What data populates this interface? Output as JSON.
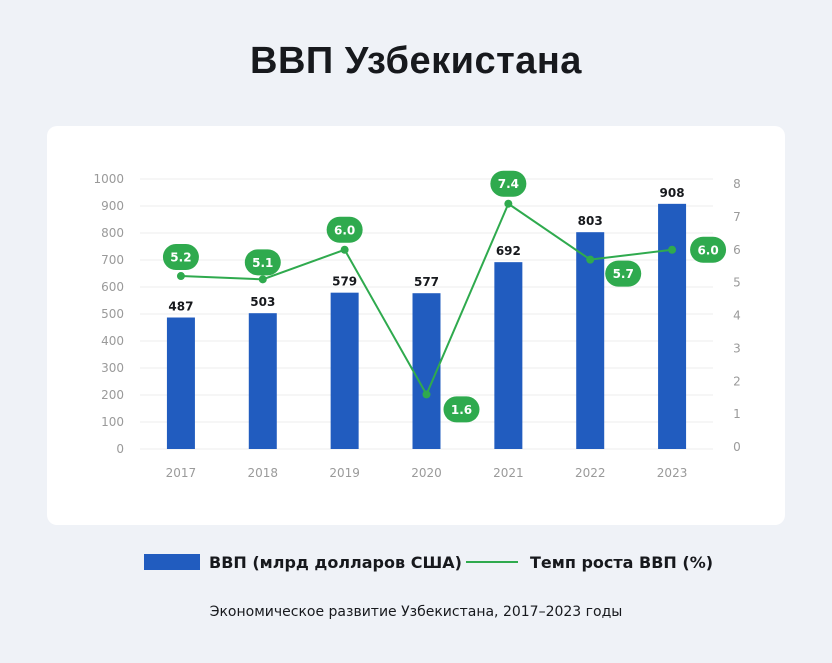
{
  "title": "ВВП Узбекистана",
  "caption": "Экономическое развитие Узбекистана, 2017–2023 годы",
  "legend": {
    "bar_label": "ВВП (млрд долларов США)",
    "line_label": "Темп роста ВВП (%)"
  },
  "colors": {
    "bar": "#215cbf",
    "line": "#2faa4e",
    "background": "#eff2f7",
    "card": "#ffffff",
    "axis_text": "#9a9a9a",
    "grid": "#ececec"
  },
  "chart_data": {
    "type": "bar",
    "title": "ВВП Узбекистана",
    "categories": [
      "2017",
      "2018",
      "2019",
      "2020",
      "2021",
      "2022",
      "2023"
    ],
    "series": [
      {
        "name": "ВВП (млрд долларов США)",
        "type": "bar",
        "axis": "left",
        "values": [
          487,
          503,
          579,
          577,
          692,
          803,
          908
        ]
      },
      {
        "name": "Темп роста ВВП (%)",
        "type": "line",
        "axis": "right",
        "values": [
          5.2,
          5.1,
          6.0,
          1.6,
          7.4,
          5.7,
          6.0
        ]
      }
    ],
    "left_axis": {
      "ylim": [
        0,
        1000
      ],
      "ticks": [
        0,
        100,
        200,
        300,
        400,
        500,
        600,
        700,
        800,
        900,
        1000
      ]
    },
    "right_axis": {
      "ylim": [
        0,
        8
      ],
      "ticks": [
        0,
        1,
        2,
        3,
        4,
        5,
        6,
        7,
        8
      ]
    },
    "xlabel": "",
    "ylabel": "",
    "grid": true,
    "legend_position": "bottom"
  }
}
